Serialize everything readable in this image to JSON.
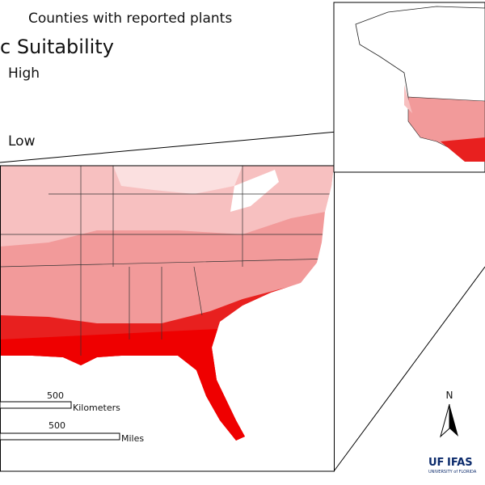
{
  "legend": {
    "counties_label": "Counties with reported plants",
    "title": "c Suitability",
    "high": "High",
    "low": "Low"
  },
  "scale": {
    "km_value": "500",
    "km_unit": "Kilometers",
    "mi_value": "500",
    "mi_unit": "Miles"
  },
  "north": "N",
  "logo": {
    "uf": "UF",
    "ifas": "IFAS",
    "university": "UNIVERSITY of FLORIDA"
  }
}
